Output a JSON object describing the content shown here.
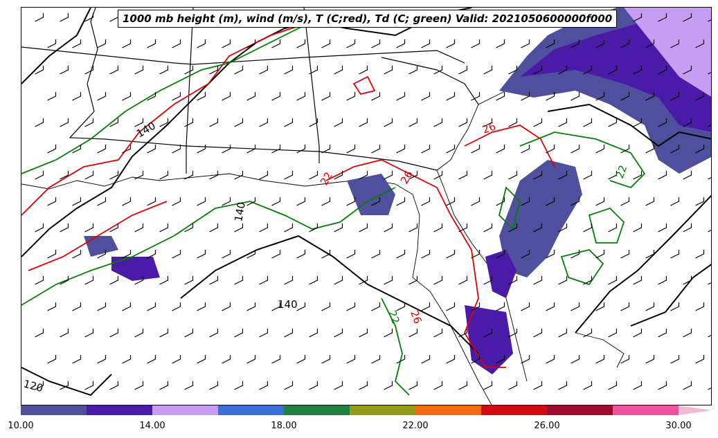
{
  "title": "1000 mb height (m), wind (m/s), T (C;red), Td (C; green) Valid: 2021050600000f000",
  "colors": {
    "height_contour": "#000000",
    "temperature_contour": "#e00000",
    "dewpoint_contour": "#008000",
    "state_borders": "#000000"
  },
  "contour_labels": {
    "height": [
      "140",
      "140",
      "140",
      "120"
    ],
    "temperature": [
      "26",
      "26",
      "26"
    ],
    "dewpoint": [
      "22",
      "22",
      "22"
    ]
  },
  "colorbar": {
    "ticks": [
      "10.00",
      "14.00",
      "18.00",
      "22.00",
      "26.00",
      "30.00"
    ],
    "bins": [
      {
        "from": 10,
        "to": 12,
        "color": "#4f4f9d"
      },
      {
        "from": 12,
        "to": 14,
        "color": "#4b1aa8"
      },
      {
        "from": 14,
        "to": 16,
        "color": "#c79cf3"
      },
      {
        "from": 16,
        "to": 18,
        "color": "#3a6fd8"
      },
      {
        "from": 18,
        "to": 20,
        "color": "#208040"
      },
      {
        "from": 20,
        "to": 22,
        "color": "#939a16"
      },
      {
        "from": 22,
        "to": 24,
        "color": "#f26b0f"
      },
      {
        "from": 24,
        "to": 26,
        "color": "#d00a10"
      },
      {
        "from": 26,
        "to": 28,
        "color": "#a00a30"
      },
      {
        "from": 28,
        "to": 30,
        "color": "#f050a0"
      },
      {
        "from": 30,
        "to": 31,
        "color": "#f4b8d4"
      }
    ]
  }
}
